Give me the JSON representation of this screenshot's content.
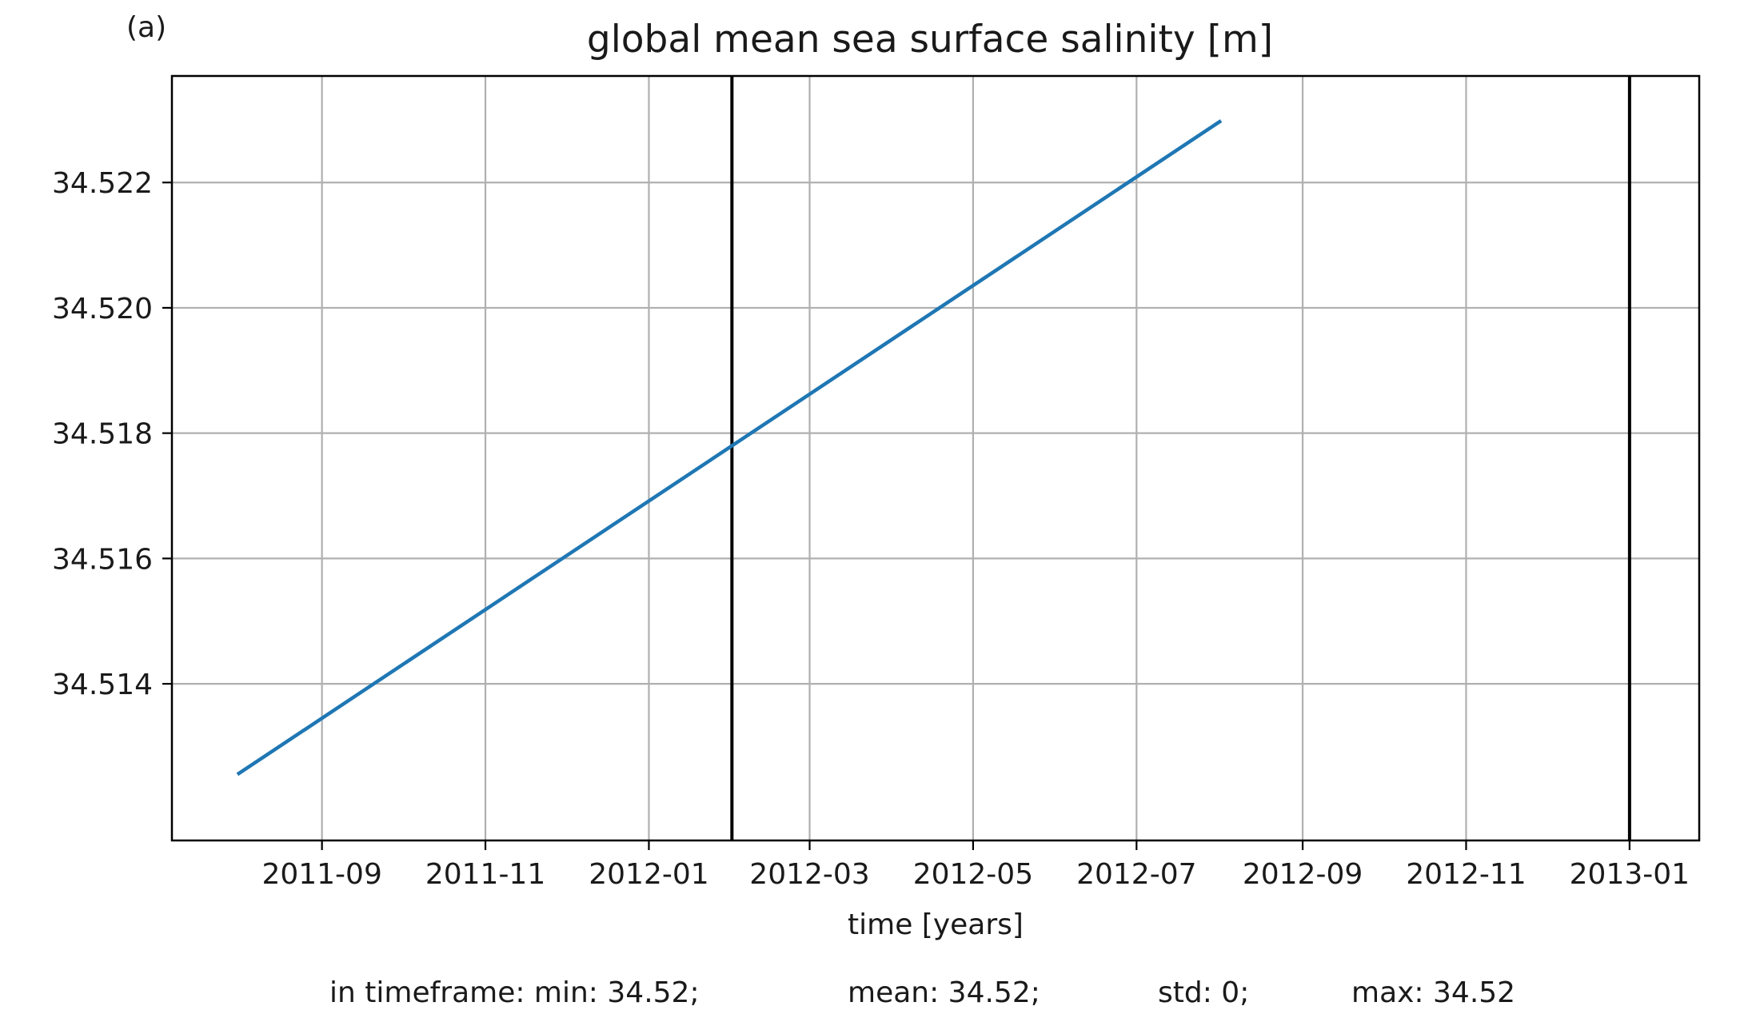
{
  "panel_label": "(a)",
  "chart_data": {
    "type": "line",
    "title": "global mean sea surface salinity [m]",
    "xlabel": "time [years]",
    "ylabel": "",
    "xlim": [
      "2011-07-07",
      "2013-01-27"
    ],
    "ylim": [
      34.5115,
      34.5237
    ],
    "x_ticks": [
      "2011-09",
      "2011-11",
      "2012-01",
      "2012-03",
      "2012-05",
      "2012-07",
      "2012-09",
      "2012-11",
      "2013-01"
    ],
    "x_tick_dates": [
      "2011-09-01",
      "2011-11-01",
      "2012-01-01",
      "2012-03-01",
      "2012-05-01",
      "2012-07-01",
      "2012-09-01",
      "2012-11-01",
      "2013-01-01"
    ],
    "y_ticks": [
      "34.514",
      "34.516",
      "34.518",
      "34.520",
      "34.522"
    ],
    "y_tick_values": [
      34.514,
      34.516,
      34.518,
      34.52,
      34.522
    ],
    "grid": true,
    "series": [
      {
        "color": "#1f77b4",
        "points": [
          {
            "x": "2011-08-01",
            "y": 34.51257
          },
          {
            "x": "2012-08-01",
            "y": 34.52297
          }
        ]
      }
    ],
    "vlines": [
      "2012-02-01",
      "2013-01-01"
    ],
    "vline_color": "#000000",
    "stats": {
      "min": "in timeframe: min: 34.52;",
      "mean": "mean: 34.52;",
      "std": "std: 0;",
      "max": "max: 34.52"
    }
  }
}
